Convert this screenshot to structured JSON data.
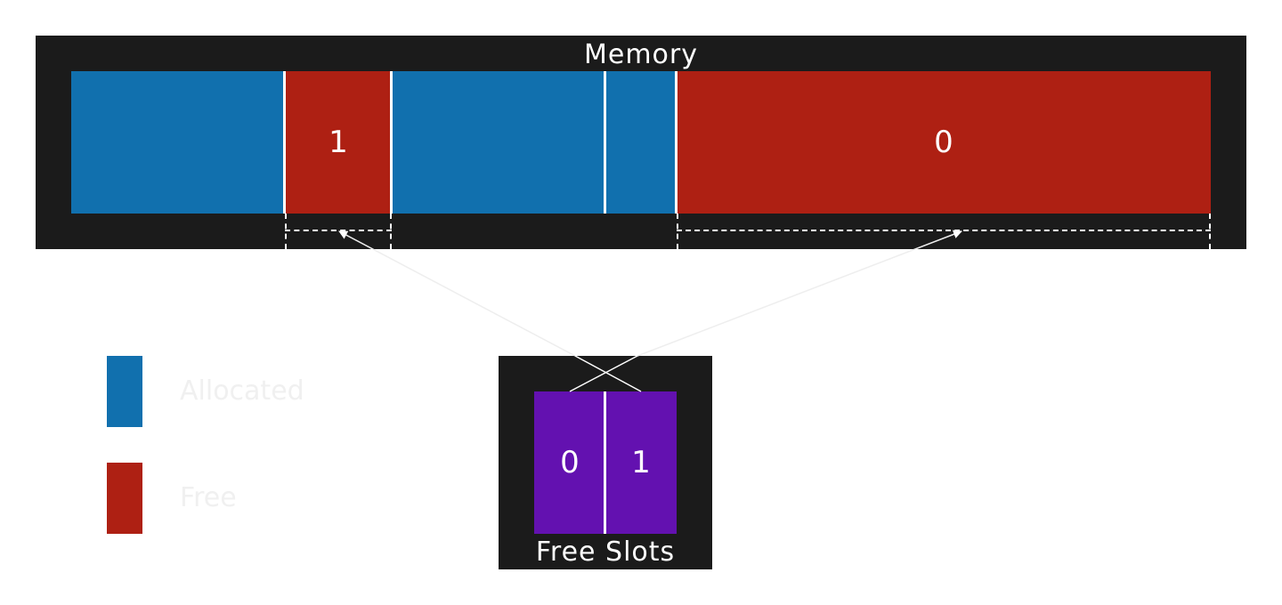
{
  "memory": {
    "title": "Memory",
    "blocks": [
      {
        "state": "allocated",
        "label": ""
      },
      {
        "state": "free",
        "label": "1"
      },
      {
        "state": "allocated",
        "label": ""
      },
      {
        "state": "allocated",
        "label": ""
      },
      {
        "state": "free",
        "label": "0"
      }
    ]
  },
  "free_slots": {
    "title": "Free Slots",
    "slots": [
      "0",
      "1"
    ]
  },
  "legend": {
    "allocated_label": "Allocated",
    "free_label": "Free"
  },
  "colors": {
    "allocated": "#1170ae",
    "free": "#ae2013",
    "slot": "#6311b0",
    "panel": "#1b1b1b"
  }
}
